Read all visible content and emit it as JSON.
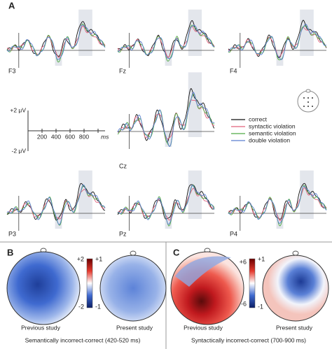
{
  "panel_a": {
    "label": "A",
    "channels": [
      "F3",
      "Fz",
      "F4",
      "Cz",
      "P3",
      "Pz",
      "P4"
    ],
    "scale": {
      "plus": "+2 μV",
      "minus": "-2 μV",
      "ticks": [
        "200",
        "400",
        "600",
        "800"
      ],
      "unit": "ms"
    },
    "legend": [
      {
        "name": "correct",
        "color": "#111111"
      },
      {
        "name": "syntactic violation",
        "color": "#e0607a"
      },
      {
        "name": "semantic violation",
        "color": "#4faa45"
      },
      {
        "name": "double violation",
        "color": "#5a7fd0"
      }
    ]
  },
  "panel_b": {
    "label": "B",
    "scale_left": [
      "+2",
      "-2"
    ],
    "scale_right": [
      "+1",
      "-1"
    ],
    "captions": [
      "Previous study",
      "Present study"
    ],
    "title": "Semantically incorrect-correct (420-520 ms)"
  },
  "panel_c": {
    "label": "C",
    "scale_left": [
      "+6",
      "-6"
    ],
    "scale_right": [
      "+1",
      "-1"
    ],
    "captions": [
      "Previous study",
      "Present study"
    ],
    "title": "Syntactically incorrect-correct (700-900 ms)"
  }
}
